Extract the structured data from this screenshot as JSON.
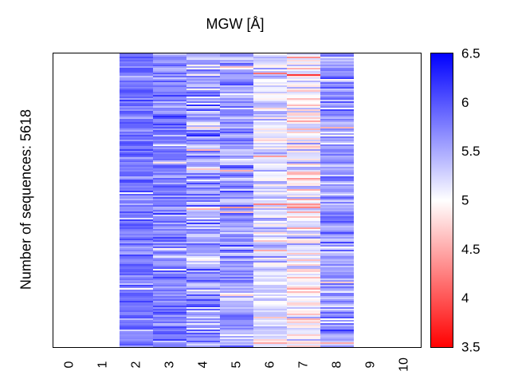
{
  "chart_data": {
    "type": "heatmap",
    "title": "MGW [Å]",
    "ylabel": "Number of sequences: 5618",
    "xlabel": "",
    "x_ticks": [
      "0",
      "1",
      "2",
      "3",
      "4",
      "5",
      "6",
      "7",
      "8",
      "9",
      "10"
    ],
    "xlim": [
      0,
      10
    ],
    "data_columns": [
      2,
      3,
      4,
      5,
      6,
      7,
      8
    ],
    "column_mean_values": [
      5.8,
      5.75,
      5.55,
      5.55,
      5.2,
      5.05,
      5.6
    ],
    "column_spread": [
      0.25,
      0.3,
      0.45,
      0.4,
      0.35,
      0.45,
      0.4
    ],
    "n_sequences": 5618,
    "colorbar": {
      "range": [
        3.5,
        6.5
      ],
      "ticks": [
        "6.5",
        "6",
        "5.5",
        "5",
        "4.5",
        "4",
        "3.5"
      ],
      "colormap": "red-white-blue",
      "low_color": "#ff0000",
      "mid_color": "#ffffff",
      "high_color": "#0000ff"
    }
  }
}
